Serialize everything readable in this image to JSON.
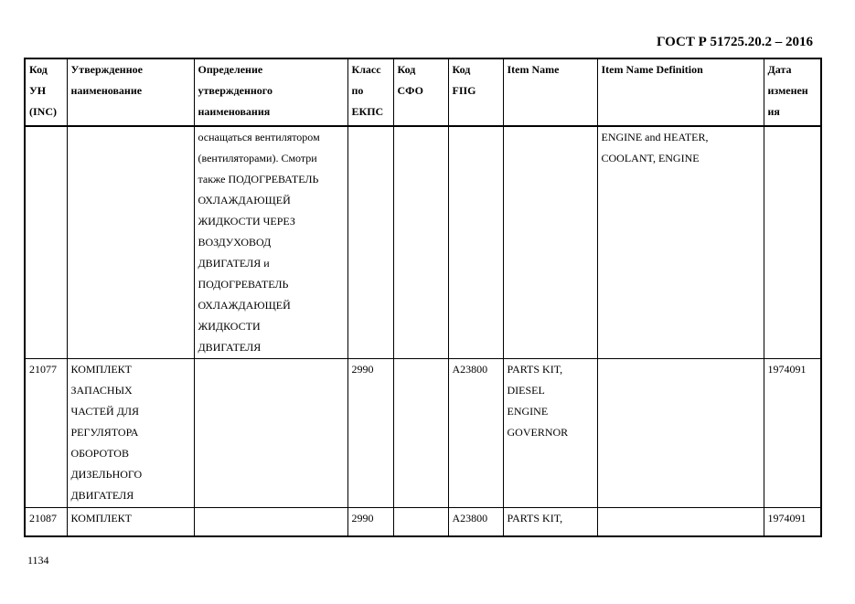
{
  "header": {
    "title": "ГОСТ Р 51725.20.2 – 2016"
  },
  "table": {
    "columns": [
      [
        "Код",
        "УН",
        "(INC)"
      ],
      [
        "Утвержденное",
        "наименование"
      ],
      [
        "Определение",
        "утвержденного",
        "наименования"
      ],
      [
        "Класс",
        "по",
        "ЕКПС"
      ],
      [
        "Код",
        "СФО"
      ],
      [
        "Код",
        "FIIG"
      ],
      [
        "Item Name"
      ],
      [
        "Item Name Definition"
      ],
      [
        "Дата",
        "изменен",
        "ия"
      ]
    ],
    "rows": [
      [
        [],
        [],
        [
          "оснащаться вентилятором",
          "(вентиляторами). Смотри",
          "также ПОДОГРЕВАТЕЛЬ",
          "ОХЛАЖДАЮЩЕЙ",
          "ЖИДКОСТИ ЧЕРЕЗ",
          "ВОЗДУХОВОД",
          "ДВИГАТЕЛЯ и",
          "ПОДОГРЕВАТЕЛЬ",
          "ОХЛАЖДАЮЩЕЙ",
          "ЖИДКОСТИ",
          "ДВИГАТЕЛЯ"
        ],
        [],
        [],
        [],
        [],
        [
          "ENGINE and HEATER,",
          "COOLANT, ENGINE"
        ],
        []
      ],
      [
        [
          "21077"
        ],
        [
          "КОМПЛЕКТ",
          "ЗАПАСНЫХ",
          "ЧАСТЕЙ ДЛЯ",
          "РЕГУЛЯТОРА",
          "ОБОРОТОВ",
          "ДИЗЕЛЬНОГО",
          "ДВИГАТЕЛЯ"
        ],
        [],
        [
          "2990"
        ],
        [],
        [
          "A23800"
        ],
        [
          "PARTS KIT,",
          "DIESEL",
          "ENGINE",
          "GOVERNOR"
        ],
        [],
        [
          "1974091"
        ]
      ],
      [
        [
          "21087"
        ],
        [
          "КОМПЛЕКТ"
        ],
        [],
        [
          "2990"
        ],
        [],
        [
          "A23800"
        ],
        [
          "PARTS KIT,"
        ],
        [],
        [
          "1974091"
        ]
      ]
    ]
  },
  "footer": {
    "page_number": "1134"
  }
}
